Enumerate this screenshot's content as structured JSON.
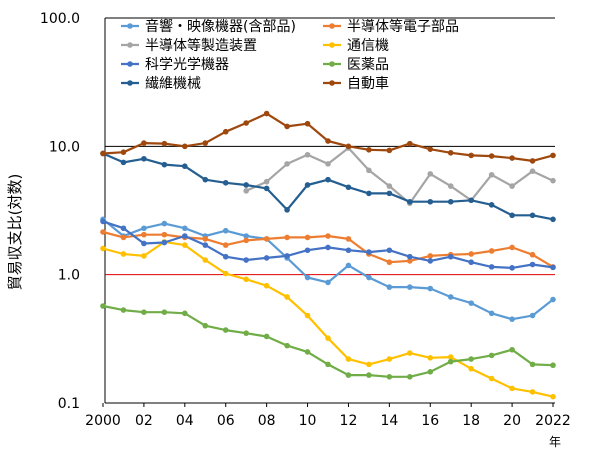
{
  "chart_data": {
    "type": "line",
    "yscale": "log",
    "ylim": [
      0.1,
      100
    ],
    "xlim": [
      2000,
      2022
    ],
    "ylabel": "貿易収支比(対数)",
    "xlabel": "年",
    "y_ticks": [
      "100.0",
      "10.0",
      "1.0",
      "0.1"
    ],
    "y_tick_values": [
      100,
      10,
      1,
      0.1
    ],
    "x_tick_labels": [
      "2000",
      "02",
      "04",
      "06",
      "08",
      "10",
      "12",
      "14",
      "16",
      "18",
      "20",
      "2022"
    ],
    "x_tick_values": [
      2000,
      2002,
      2004,
      2006,
      2008,
      2010,
      2012,
      2014,
      2016,
      2018,
      2020,
      2022
    ],
    "reference_lines": [
      {
        "y": 10,
        "color": "#000000"
      },
      {
        "y": 1,
        "color": "#e00000"
      }
    ],
    "x": [
      2000,
      2001,
      2002,
      2003,
      2004,
      2005,
      2006,
      2007,
      2008,
      2009,
      2010,
      2011,
      2012,
      2013,
      2014,
      2015,
      2016,
      2017,
      2018,
      2019,
      2020,
      2021,
      2022
    ],
    "series": [
      {
        "name": "音響・映像機器(含部品)",
        "color": "#5b9bd5",
        "values": [
          2.7,
          2.0,
          2.3,
          2.5,
          2.3,
          2.0,
          2.2,
          2.0,
          1.9,
          1.35,
          0.95,
          0.87,
          1.18,
          0.95,
          0.8,
          0.8,
          0.78,
          0.67,
          0.6,
          0.5,
          0.45,
          0.48,
          0.64
        ]
      },
      {
        "name": "半導体等電子部品",
        "color": "#ed7d31",
        "values": [
          2.15,
          1.95,
          2.05,
          2.05,
          1.95,
          1.9,
          1.7,
          1.85,
          1.9,
          1.95,
          1.95,
          2.0,
          1.9,
          1.45,
          1.25,
          1.28,
          1.4,
          1.43,
          1.45,
          1.53,
          1.63,
          1.43,
          1.15
        ]
      },
      {
        "name": "半導体等製造装置",
        "color": "#a5a5a5",
        "values": [
          null,
          null,
          null,
          null,
          null,
          null,
          null,
          4.5,
          5.3,
          7.3,
          8.6,
          7.3,
          9.7,
          6.5,
          4.9,
          3.6,
          6.1,
          4.9,
          3.8,
          6.0,
          4.9,
          6.4,
          5.4
        ]
      },
      {
        "name": "通信機",
        "color": "#ffc000",
        "values": [
          1.6,
          1.45,
          1.4,
          1.8,
          1.7,
          1.3,
          1.02,
          0.92,
          0.82,
          0.67,
          0.48,
          0.32,
          0.22,
          0.2,
          0.22,
          0.245,
          0.225,
          0.228,
          0.185,
          0.155,
          0.13,
          0.122,
          0.112
        ]
      },
      {
        "name": "科学光学機器",
        "color": "#4472c4",
        "values": [
          2.6,
          2.3,
          1.75,
          1.78,
          2.0,
          1.7,
          1.38,
          1.3,
          1.35,
          1.4,
          1.55,
          1.63,
          1.55,
          1.5,
          1.55,
          1.38,
          1.28,
          1.38,
          1.25,
          1.15,
          1.13,
          1.2,
          1.14
        ]
      },
      {
        "name": "医薬品",
        "color": "#70ad47",
        "values": [
          0.57,
          0.53,
          0.51,
          0.51,
          0.5,
          0.4,
          0.37,
          0.35,
          0.33,
          0.28,
          0.25,
          0.2,
          0.165,
          0.165,
          0.16,
          0.16,
          0.175,
          0.21,
          0.22,
          0.235,
          0.26,
          0.2,
          0.197
        ]
      },
      {
        "name": "繊維機械",
        "color": "#255e91",
        "values": [
          8.8,
          7.5,
          8.0,
          7.2,
          7.0,
          5.5,
          5.2,
          5.0,
          4.7,
          3.2,
          5.0,
          5.5,
          4.8,
          4.3,
          4.3,
          3.7,
          3.7,
          3.7,
          3.8,
          3.5,
          2.9,
          2.9,
          2.7
        ]
      },
      {
        "name": "自動車",
        "color": "#9e480e",
        "values": [
          8.8,
          9.0,
          10.6,
          10.5,
          10.0,
          10.6,
          13.0,
          15.2,
          18.0,
          14.3,
          15.0,
          11.0,
          10.0,
          9.4,
          9.3,
          10.5,
          9.5,
          8.9,
          8.5,
          8.4,
          8.1,
          7.7,
          8.5
        ]
      }
    ]
  }
}
